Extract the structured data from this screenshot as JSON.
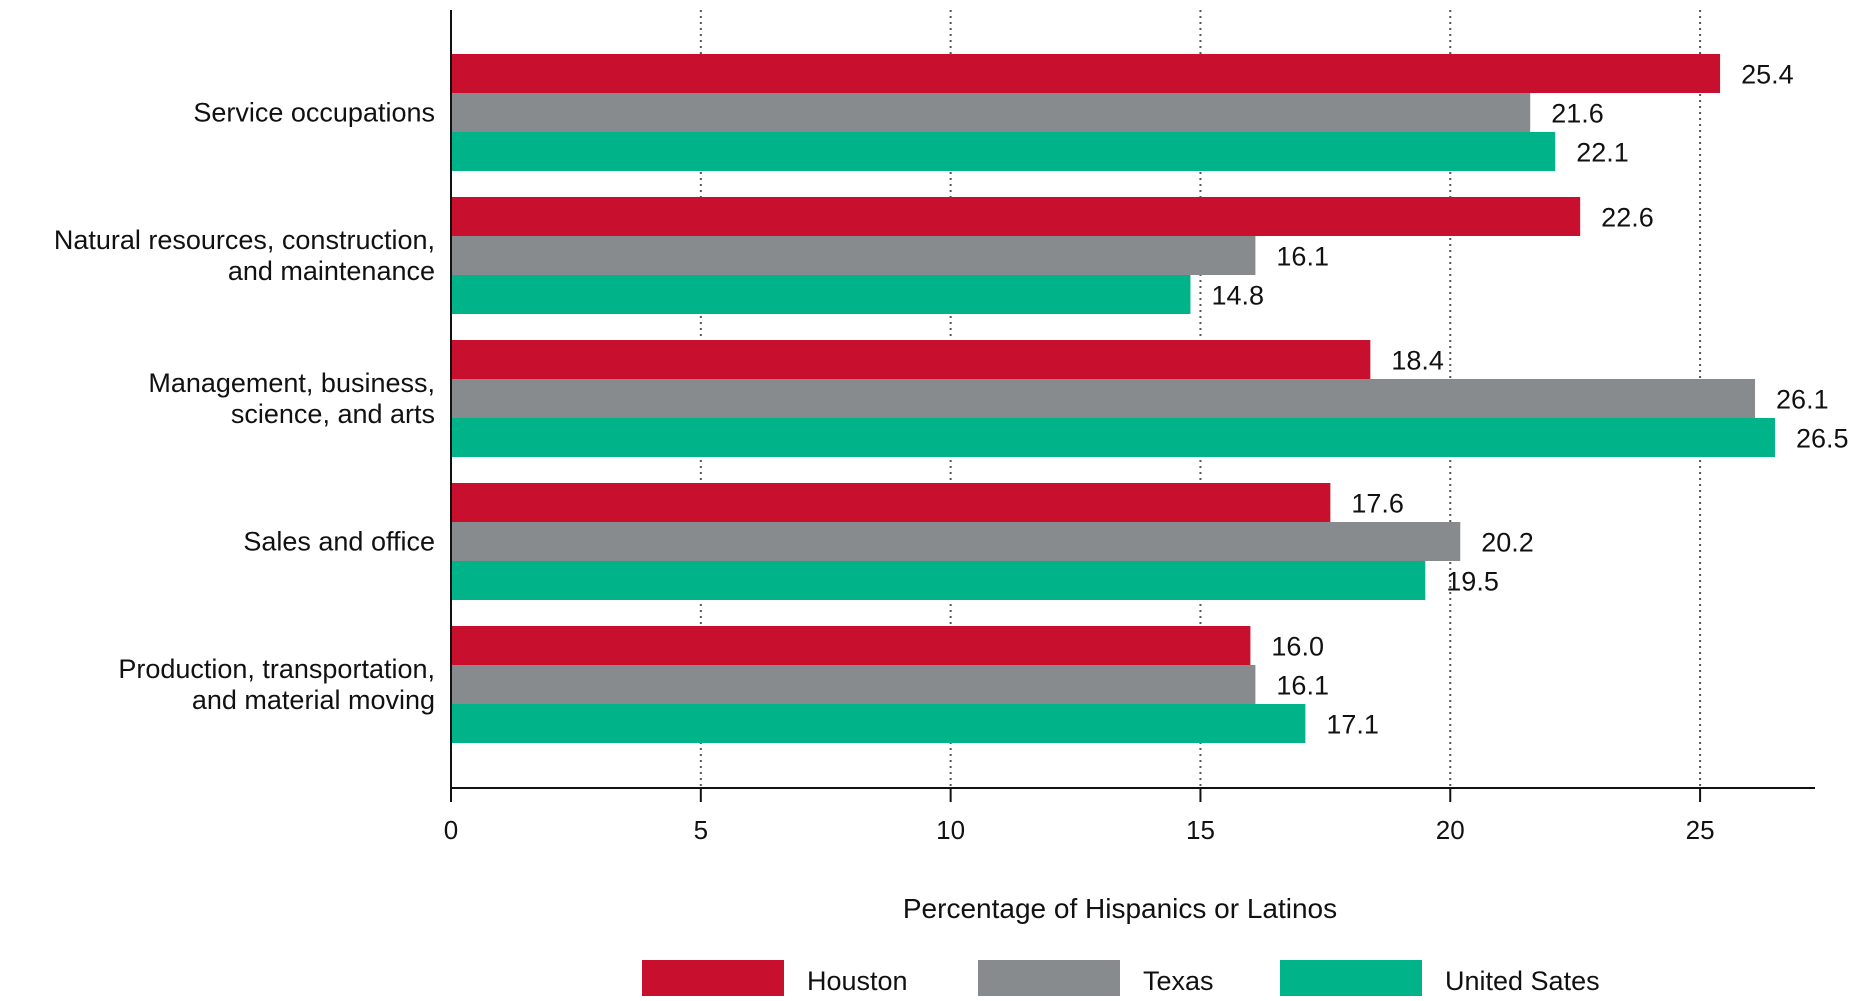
{
  "chart_data": {
    "type": "bar",
    "orientation": "horizontal",
    "title": "",
    "xlabel": "Percentage of Hispanics or Latinos",
    "ylabel": "",
    "xlim": [
      0,
      27.3
    ],
    "x_ticks": [
      0,
      5,
      10,
      15,
      20,
      25
    ],
    "grid": "vertical dotted",
    "legend_position": "bottom",
    "categories": [
      [
        "Service occupations"
      ],
      [
        "Natural resources, construction,",
        "and maintenance"
      ],
      [
        "Management, business,",
        "science, and arts"
      ],
      [
        "Sales and office"
      ],
      [
        "Production, transportation,",
        "and material moving"
      ]
    ],
    "series": [
      {
        "name": "Houston",
        "color": "#c8102e",
        "values": [
          25.4,
          22.6,
          18.4,
          17.6,
          16.0
        ],
        "labels": [
          "25.4",
          "22.6",
          "18.4",
          "17.6",
          "16.0"
        ]
      },
      {
        "name": "Texas",
        "color": "#888b8d",
        "values": [
          21.6,
          16.1,
          26.1,
          20.2,
          16.1
        ],
        "labels": [
          "21.6",
          "16.1",
          "26.1",
          "20.2",
          "16.1"
        ]
      },
      {
        "name": "United Sates",
        "color": "#00b388",
        "values": [
          22.1,
          14.8,
          26.5,
          19.5,
          17.1
        ],
        "labels": [
          "22.1",
          "14.8",
          "26.5",
          "19.5",
          "17.1"
        ]
      }
    ]
  }
}
